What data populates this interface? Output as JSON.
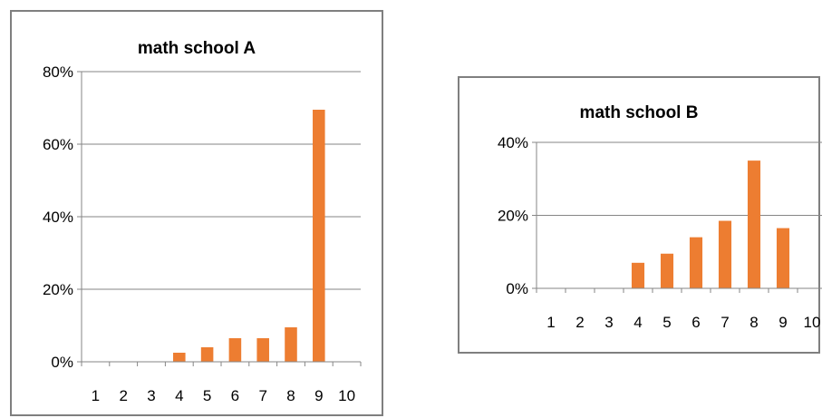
{
  "chart_data": [
    {
      "type": "bar",
      "title": "math school A",
      "categories": [
        "1",
        "2",
        "3",
        "4",
        "5",
        "6",
        "7",
        "8",
        "9",
        "10"
      ],
      "values": [
        0,
        0,
        0,
        2.5,
        4,
        6.5,
        6.5,
        9.5,
        69.5,
        0
      ],
      "ylim": [
        0,
        80
      ],
      "yticks": [
        "0%",
        "20%",
        "40%",
        "60%",
        "80%"
      ],
      "xlabel": "",
      "ylabel": "",
      "grid": true,
      "bar_color": "#ED7D31"
    },
    {
      "type": "bar",
      "title": "math school B",
      "categories": [
        "1",
        "2",
        "3",
        "4",
        "5",
        "6",
        "7",
        "8",
        "9",
        "10"
      ],
      "values": [
        0,
        0,
        0,
        7,
        9.5,
        14,
        18.5,
        35,
        16.5,
        0
      ],
      "ylim": [
        0,
        40
      ],
      "yticks": [
        "0%",
        "20%",
        "40%"
      ],
      "xlabel": "",
      "ylabel": "",
      "grid": true,
      "bar_color": "#ED7D31"
    }
  ]
}
